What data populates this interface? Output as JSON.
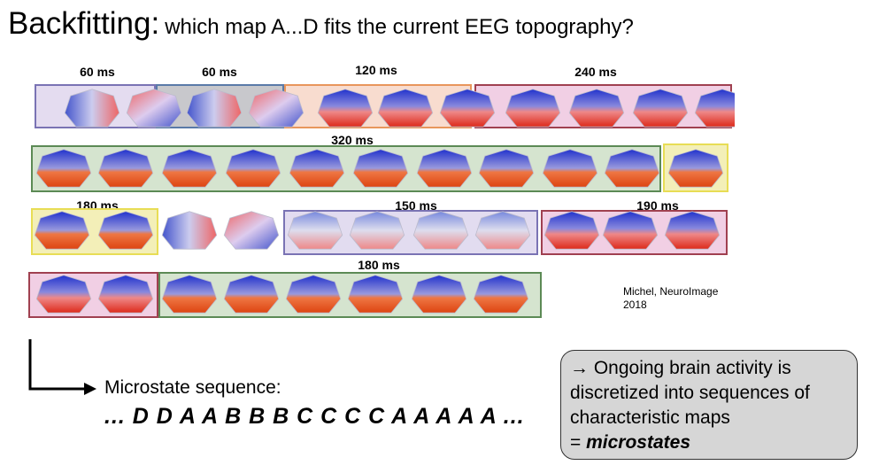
{
  "title": {
    "main": "Backfitting:",
    "sub": "which map A...D fits the current EEG topography?"
  },
  "figure": {
    "labels": [
      "60 ms",
      "60 ms",
      "120 ms",
      "240 ms",
      "320 ms",
      "180 ms",
      "150 ms",
      "190 ms",
      "180 ms"
    ],
    "citation_line1": "Michel, NeuroImage",
    "citation_line2": "2018"
  },
  "colors": {
    "map_A": "#e6d9ef",
    "map_B": "#f1cfe0",
    "map_C": "#d5e4cf",
    "map_D": "#f3efb8",
    "border_A": "#7a73b4",
    "border_B": "#a04050",
    "border_C": "#5c8a55",
    "border_D": "#e8dd55",
    "border_gray": "#5a7aa8",
    "border_orange": "#e8965c"
  },
  "sequence": {
    "label": "Microstate sequence:",
    "text": "... D D A A B B B C C C C A A A A A ..."
  },
  "callout": {
    "line1": "→ Ongoing brain activity is",
    "line2": "discretized into sequences of",
    "line3": "characteristic maps",
    "line4_prefix": "= ",
    "line4_em": "microstates"
  }
}
